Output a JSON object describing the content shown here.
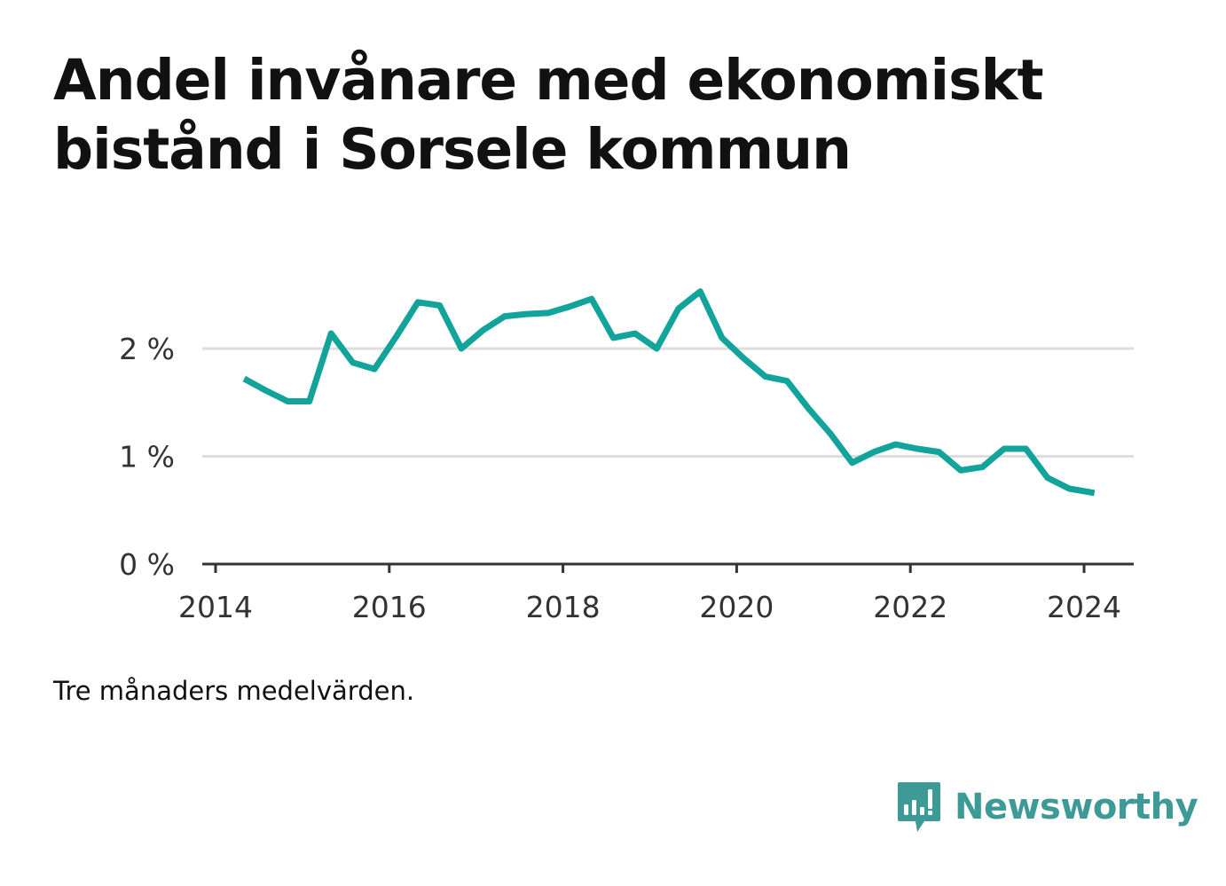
{
  "title": "Andel invånare med ekonomiskt bistånd i Sorsele kommun",
  "note": "Tre månaders medelvärden.",
  "brand": {
    "name": "Newsworthy",
    "icon": "bar-chart-speech-bubble-icon",
    "color": "#3d9a96"
  },
  "colors": {
    "line": "#12a39a",
    "grid": "#dddddd",
    "axis": "#333333"
  },
  "chart_data": {
    "type": "line",
    "title": "Andel invånare med ekonomiskt bistånd i Sorsele kommun",
    "xlabel": "",
    "ylabel": "",
    "x_ticks": [
      "2014",
      "2016",
      "2018",
      "2020",
      "2022",
      "2024"
    ],
    "y_ticks": [
      {
        "value": 0,
        "label": "0 %"
      },
      {
        "value": 1,
        "label": "1 %"
      },
      {
        "value": 2,
        "label": "2 %"
      }
    ],
    "xlim": [
      2014,
      2024.6
    ],
    "ylim": [
      0,
      2.6
    ],
    "grid": true,
    "series": [
      {
        "x": [
          2014.33,
          2014.58,
          2014.83,
          2015.08,
          2015.33,
          2015.58,
          2015.83,
          2016.08,
          2016.33,
          2016.58,
          2016.83,
          2017.08,
          2017.33,
          2017.58,
          2017.83,
          2018.08,
          2018.33,
          2018.58,
          2018.83,
          2019.08,
          2019.33,
          2019.58,
          2019.83,
          2020.08,
          2020.33,
          2020.58,
          2020.83,
          2021.08,
          2021.33,
          2021.58,
          2021.83,
          2022.08,
          2022.33,
          2022.58,
          2022.83,
          2023.08,
          2023.33,
          2023.58,
          2023.83,
          2024.12
        ],
        "y": [
          1.72,
          1.61,
          1.51,
          1.51,
          2.14,
          1.87,
          1.81,
          2.11,
          2.43,
          2.4,
          2.0,
          2.17,
          2.3,
          2.32,
          2.33,
          2.39,
          2.46,
          2.1,
          2.14,
          2.0,
          2.37,
          2.53,
          2.1,
          1.91,
          1.74,
          1.7,
          1.44,
          1.21,
          0.94,
          1.04,
          1.11,
          1.07,
          1.04,
          0.87,
          0.9,
          1.07,
          1.07,
          0.8,
          0.7,
          0.66
        ]
      }
    ]
  }
}
